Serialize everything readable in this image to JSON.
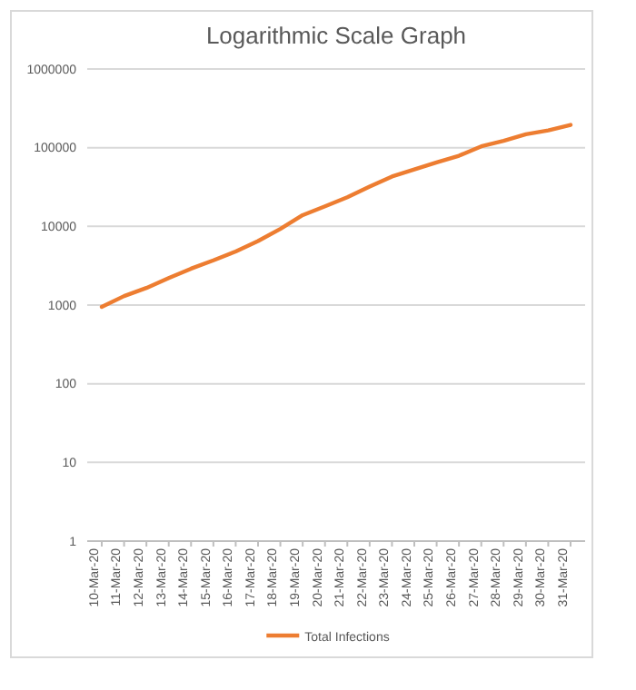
{
  "chart_data": {
    "type": "line",
    "title": "Logarithmic Scale Graph",
    "categories": [
      "10-Mar-20",
      "11-Mar-20",
      "12-Mar-20",
      "13-Mar-20",
      "14-Mar-20",
      "15-Mar-20",
      "16-Mar-20",
      "17-Mar-20",
      "18-Mar-20",
      "19-Mar-20",
      "20-Mar-20",
      "21-Mar-20",
      "22-Mar-20",
      "23-Mar-20",
      "24-Mar-20",
      "25-Mar-20",
      "26-Mar-20",
      "27-Mar-20",
      "28-Mar-20",
      "29-Mar-20",
      "30-Mar-20",
      "31-Mar-20"
    ],
    "series": [
      {
        "name": "Total Infections",
        "color": "#ed7d31",
        "values": [
          950,
          1300,
          1650,
          2200,
          2900,
          3700,
          4800,
          6500,
          9300,
          13900,
          18000,
          23500,
          32000,
          43000,
          53000,
          65000,
          79000,
          104000,
          122000,
          148000,
          166000,
          195000
        ]
      }
    ],
    "log": "y",
    "ylim": [
      1,
      1000000
    ],
    "yticks": [
      1,
      10,
      100,
      1000,
      10000,
      100000,
      1000000
    ],
    "grid": "y",
    "legend": "bottom",
    "marker": "none"
  }
}
